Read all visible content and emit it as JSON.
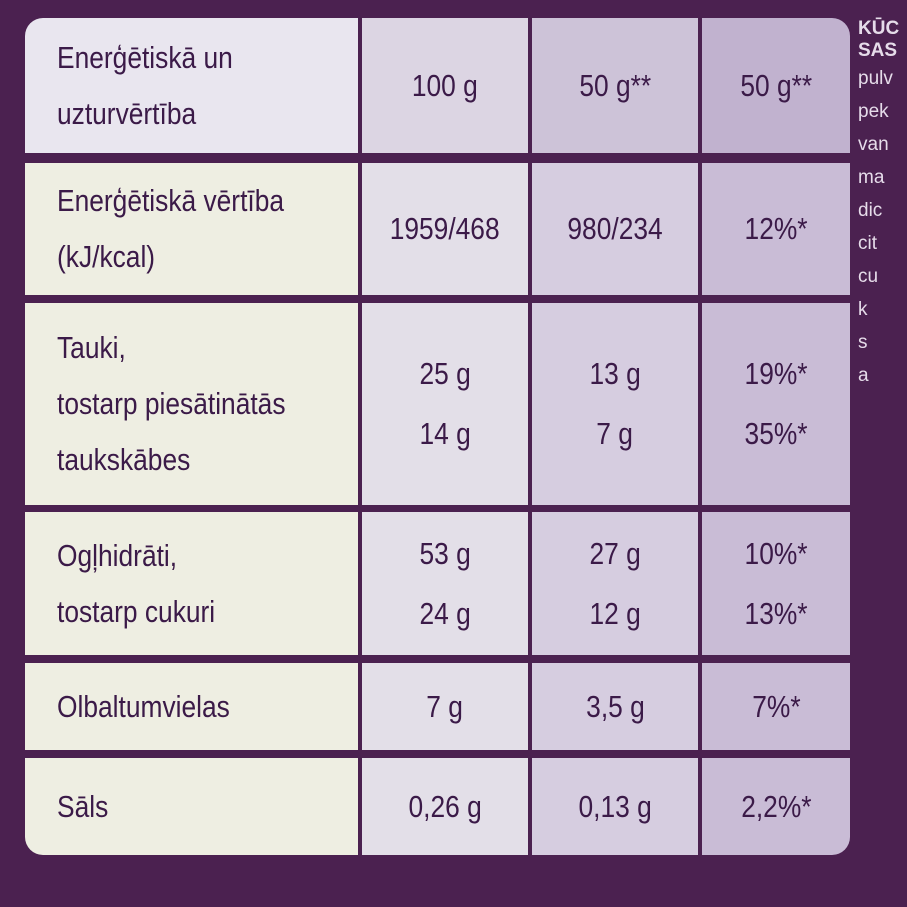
{
  "table": {
    "header": {
      "label": [
        "Enerģētiskā un",
        "uzturvērtība"
      ],
      "cells": [
        [
          "100 g"
        ],
        [
          "50 g**"
        ],
        [
          "50 g**"
        ]
      ]
    },
    "rows": [
      {
        "label": [
          "Enerģētiskā vērtība",
          "(kJ/kcal)"
        ],
        "cells": [
          [
            "1959/468"
          ],
          [
            "980/234"
          ],
          [
            "12%*"
          ]
        ]
      },
      {
        "label": [
          "Tauki,",
          "tostarp piesātinātās",
          "taukskābes"
        ],
        "cells": [
          [
            "25 g",
            "14 g"
          ],
          [
            "13 g",
            "7 g"
          ],
          [
            "19%*",
            "35%*"
          ]
        ]
      },
      {
        "label": [
          "Ogļhidrāti,",
          "tostarp cukuri"
        ],
        "cells": [
          [
            "53 g",
            "24 g"
          ],
          [
            "27 g",
            "12 g"
          ],
          [
            "10%*",
            "13%*"
          ]
        ]
      },
      {
        "label": [
          "Olbaltumvielas"
        ],
        "cells": [
          [
            "7 g"
          ],
          [
            "3,5 g"
          ],
          [
            "7%*"
          ]
        ]
      },
      {
        "label": [
          "Sāls"
        ],
        "cells": [
          [
            "0,26 g"
          ],
          [
            "0,13 g"
          ],
          [
            "2,2%*"
          ]
        ]
      }
    ]
  },
  "side_text": [
    "KŪC",
    "SAS",
    "pulv",
    "pek",
    "van",
    "ma",
    "dic",
    "cit",
    "cu",
    "k",
    "s",
    "a"
  ]
}
